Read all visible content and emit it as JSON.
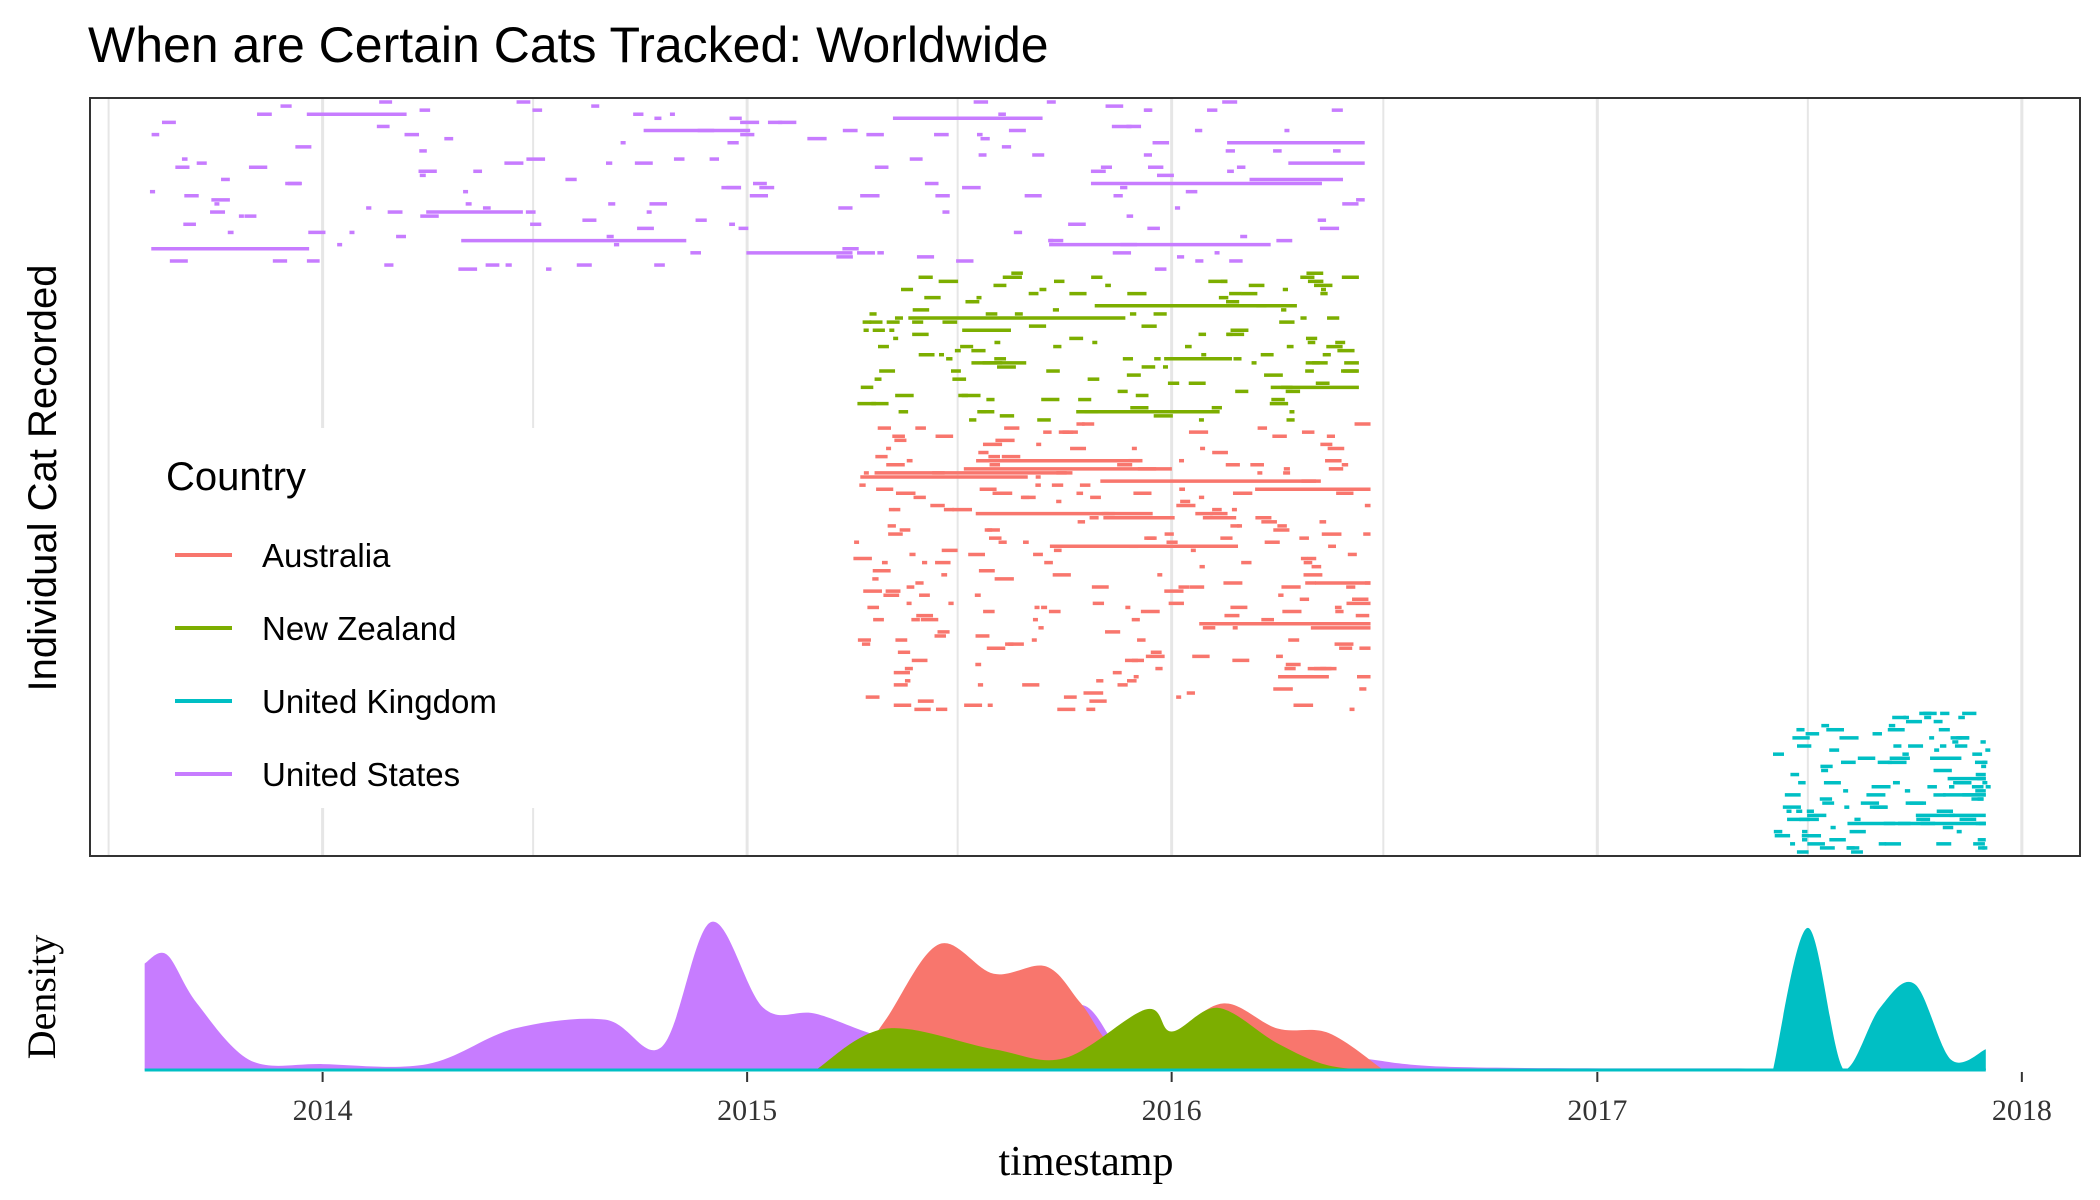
{
  "chart_data": [
    {
      "type": "scatter",
      "panel": "top",
      "title": "When are Certain Cats Tracked: Worldwide",
      "xlabel": "",
      "ylabel": "Individual Cat Recorded",
      "xlim": [
        "2013-06-15",
        "2018-02-20"
      ],
      "grid": true,
      "legend": {
        "title": "Country",
        "placement": "left-inside",
        "entries": [
          {
            "label": "Australia",
            "color": "#F8766D"
          },
          {
            "label": "New Zealand",
            "color": "#7CAE00"
          },
          {
            "label": "United Kingdom",
            "color": "#00BFC4"
          },
          {
            "label": "United States",
            "color": "#C77CFF"
          }
        ]
      },
      "note": "each short horizontal segment is one tracking interval of one cat; rows are individual cats grouped by country",
      "series": [
        {
          "country": "United States",
          "cat_rows": [
            1,
            42
          ],
          "time_range": [
            "2013-08-01",
            "2016-06-15"
          ]
        },
        {
          "country": "New Zealand",
          "cat_rows": [
            43,
            79
          ],
          "time_range": [
            "2015-04-05",
            "2016-06-10"
          ]
        },
        {
          "country": "Australia",
          "cat_rows": [
            80,
            150
          ],
          "time_range": [
            "2015-04-01",
            "2016-06-20"
          ]
        },
        {
          "country": "United Kingdom",
          "cat_rows": [
            151,
            185
          ],
          "time_range": [
            "2017-06-01",
            "2017-12-01"
          ]
        }
      ]
    },
    {
      "type": "area",
      "panel": "bottom",
      "xlabel": "timestamp",
      "ylabel": "Density",
      "x_ticks": [
        "2014",
        "2015",
        "2016",
        "2017",
        "2018"
      ],
      "series": [
        {
          "name": "United States",
          "color": "#C77CFF",
          "x": [
            "2013-08-01",
            "2013-08-20",
            "2013-09-15",
            "2013-11-01",
            "2014-01-01",
            "2014-04-01",
            "2014-06-15",
            "2014-09-01",
            "2014-10-20",
            "2014-12-01",
            "2015-01-15",
            "2015-03-01",
            "2015-05-01",
            "2015-07-01",
            "2015-08-20",
            "2015-10-15",
            "2015-12-01",
            "2016-03-01",
            "2016-06-01",
            "2016-09-01",
            "2017-06-01",
            "2017-12-01"
          ],
          "y": [
            0.72,
            0.78,
            0.45,
            0.06,
            0.04,
            0.04,
            0.28,
            0.34,
            0.16,
            1.0,
            0.42,
            0.38,
            0.22,
            0.22,
            0.12,
            0.44,
            0.05,
            0.03,
            0.08,
            0.02,
            0.01,
            0.01
          ]
        },
        {
          "name": "Australia",
          "color": "#F8766D",
          "x": [
            "2015-04-01",
            "2015-05-01",
            "2015-06-15",
            "2015-08-01",
            "2015-09-15",
            "2015-10-15",
            "2015-11-15",
            "2016-01-01",
            "2016-02-15",
            "2016-04-01",
            "2016-05-15",
            "2016-07-01"
          ],
          "y": [
            0.01,
            0.35,
            0.85,
            0.65,
            0.7,
            0.45,
            0.15,
            0.25,
            0.45,
            0.28,
            0.25,
            0.0
          ]
        },
        {
          "name": "New Zealand",
          "color": "#7CAE00",
          "x": [
            "2015-03-01",
            "2015-05-01",
            "2015-08-01",
            "2015-10-01",
            "2015-12-10",
            "2016-01-01",
            "2016-02-10",
            "2016-04-01",
            "2016-05-15",
            "2016-07-01"
          ],
          "y": [
            0.0,
            0.28,
            0.14,
            0.08,
            0.41,
            0.26,
            0.42,
            0.18,
            0.03,
            0.0
          ]
        },
        {
          "name": "United Kingdom",
          "color": "#00BFC4",
          "x": [
            "2017-06-01",
            "2017-07-01",
            "2017-08-01",
            "2017-09-01",
            "2017-10-01",
            "2017-11-01",
            "2017-12-01"
          ],
          "y": [
            0.0,
            0.96,
            0.0,
            0.42,
            0.58,
            0.07,
            0.14
          ]
        }
      ]
    }
  ]
}
